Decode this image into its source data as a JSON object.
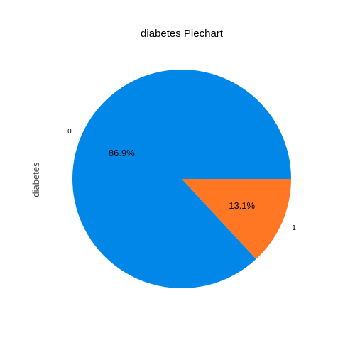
{
  "chart_data": {
    "type": "pie",
    "title": "diabetes Piechart",
    "ylabel": "diabetes",
    "labels": [
      "0",
      "1"
    ],
    "values": [
      86.9,
      13.1
    ],
    "percent_labels": [
      "86.9%",
      "13.1%"
    ],
    "colors": [
      "#0087E8",
      "#FF7722"
    ]
  }
}
